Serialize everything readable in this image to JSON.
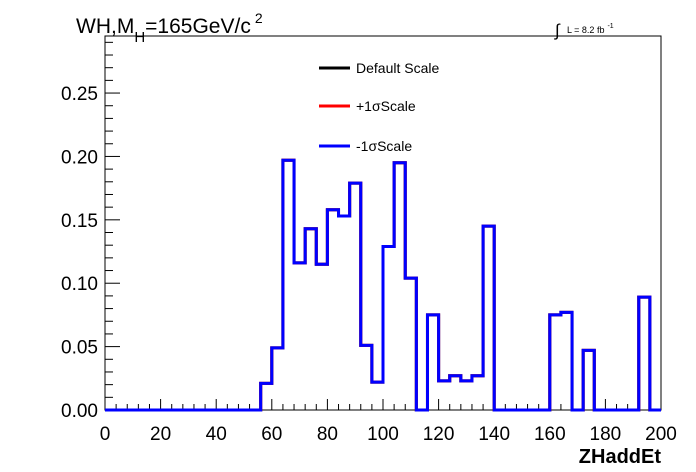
{
  "header": {
    "title_main": "WH,M",
    "title_sub": "H",
    "title_rest": "=165GeV/c",
    "title_sup": "2",
    "lumi_integral": "∫",
    "lumi_text": "L = 8.2 fb",
    "lumi_sup": "-1"
  },
  "legend": {
    "items": [
      {
        "label": "Default Scale",
        "color": "#000000"
      },
      {
        "label": "+1σScale",
        "color": "#ff0000"
      },
      {
        "label": "-1σScale",
        "color": "#0000ff"
      }
    ]
  },
  "chart_data": {
    "type": "line",
    "xlabel": "ZHaddEt",
    "ylabel": "",
    "xlim": [
      0,
      200
    ],
    "ylim": [
      0,
      0.295
    ],
    "x_ticks": [
      "0",
      "20",
      "40",
      "60",
      "80",
      "100",
      "120",
      "140",
      "160",
      "180",
      "200"
    ],
    "y_ticks": [
      "0.00",
      "0.05",
      "0.10",
      "0.15",
      "0.20",
      "0.25"
    ],
    "grid": false,
    "legend_position": "top-center",
    "bin_edges": [
      0,
      4,
      8,
      12,
      16,
      20,
      24,
      28,
      32,
      36,
      40,
      44,
      48,
      52,
      56,
      60,
      64,
      68,
      72,
      76,
      80,
      84,
      88,
      92,
      96,
      100,
      104,
      108,
      112,
      116,
      120,
      124,
      128,
      132,
      136,
      140,
      144,
      148,
      152,
      156,
      160,
      164,
      168,
      172,
      176,
      180,
      184,
      188,
      192,
      196,
      200
    ],
    "series": [
      {
        "name": "Default Scale",
        "color": "#000000",
        "values": [
          0,
          0,
          0,
          0,
          0,
          0,
          0,
          0,
          0,
          0,
          0,
          0,
          0,
          0,
          0.021,
          0.049,
          0.197,
          0.116,
          0.143,
          0.115,
          0.158,
          0.153,
          0.179,
          0.051,
          0.022,
          0.129,
          0.195,
          0.104,
          0,
          0.075,
          0.023,
          0.027,
          0.023,
          0.027,
          0.145,
          0,
          0,
          0,
          0,
          0,
          0.075,
          0.077,
          0,
          0.047,
          0,
          0,
          0,
          0,
          0.089,
          0
        ]
      },
      {
        "name": "+1σScale",
        "color": "#ff0000",
        "values": [
          0,
          0,
          0,
          0,
          0,
          0,
          0,
          0,
          0,
          0,
          0,
          0,
          0,
          0,
          0.021,
          0.049,
          0.197,
          0.116,
          0.143,
          0.115,
          0.158,
          0.153,
          0.179,
          0.051,
          0.022,
          0.129,
          0.195,
          0.104,
          0,
          0.075,
          0.023,
          0.027,
          0.023,
          0.027,
          0.145,
          0,
          0,
          0,
          0,
          0,
          0.075,
          0.077,
          0,
          0.047,
          0,
          0,
          0,
          0,
          0.089,
          0
        ]
      },
      {
        "name": "-1σScale",
        "color": "#0000ff",
        "values": [
          0,
          0,
          0,
          0,
          0,
          0,
          0,
          0,
          0,
          0,
          0,
          0,
          0,
          0,
          0.021,
          0.049,
          0.197,
          0.116,
          0.143,
          0.115,
          0.158,
          0.153,
          0.179,
          0.051,
          0.022,
          0.129,
          0.195,
          0.104,
          0,
          0.075,
          0.023,
          0.027,
          0.023,
          0.027,
          0.145,
          0,
          0,
          0,
          0,
          0,
          0.075,
          0.077,
          0,
          0.047,
          0,
          0,
          0,
          0,
          0.089,
          0
        ]
      }
    ]
  }
}
